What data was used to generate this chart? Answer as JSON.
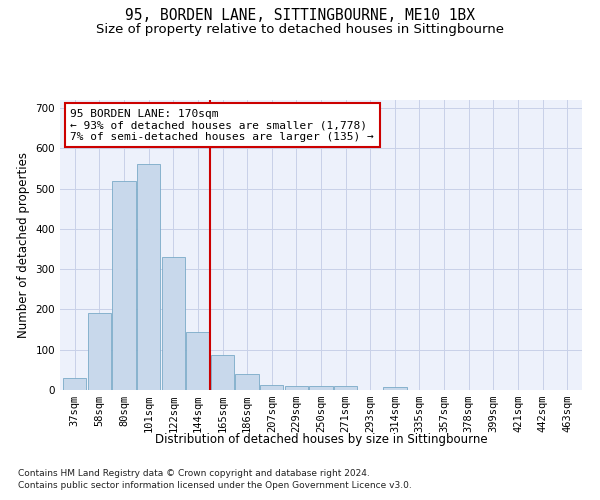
{
  "title": "95, BORDEN LANE, SITTINGBOURNE, ME10 1BX",
  "subtitle": "Size of property relative to detached houses in Sittingbourne",
  "xlabel": "Distribution of detached houses by size in Sittingbourne",
  "ylabel": "Number of detached properties",
  "footnote1": "Contains HM Land Registry data © Crown copyright and database right 2024.",
  "footnote2": "Contains public sector information licensed under the Open Government Licence v3.0.",
  "annotation_line1": "95 BORDEN LANE: 170sqm",
  "annotation_line2": "← 93% of detached houses are smaller (1,778)",
  "annotation_line3": "7% of semi-detached houses are larger (135) →",
  "bar_color": "#c8d8eb",
  "bar_edge_color": "#7aaac8",
  "vline_color": "#cc0000",
  "background_color": "#edf1fb",
  "categories": [
    "37sqm",
    "58sqm",
    "80sqm",
    "101sqm",
    "122sqm",
    "144sqm",
    "165sqm",
    "186sqm",
    "207sqm",
    "229sqm",
    "250sqm",
    "271sqm",
    "293sqm",
    "314sqm",
    "335sqm",
    "357sqm",
    "378sqm",
    "399sqm",
    "421sqm",
    "442sqm",
    "463sqm"
  ],
  "values": [
    30,
    190,
    520,
    560,
    330,
    145,
    88,
    40,
    12,
    10,
    10,
    10,
    0,
    7,
    0,
    0,
    0,
    0,
    0,
    0,
    0
  ],
  "vline_index": 6,
  "ylim": [
    0,
    720
  ],
  "yticks": [
    0,
    100,
    200,
    300,
    400,
    500,
    600,
    700
  ],
  "grid_color": "#c8d0e8",
  "title_fontsize": 10.5,
  "subtitle_fontsize": 9.5,
  "axis_label_fontsize": 8.5,
  "tick_fontsize": 7.5,
  "annotation_fontsize": 8,
  "footnote_fontsize": 6.5
}
